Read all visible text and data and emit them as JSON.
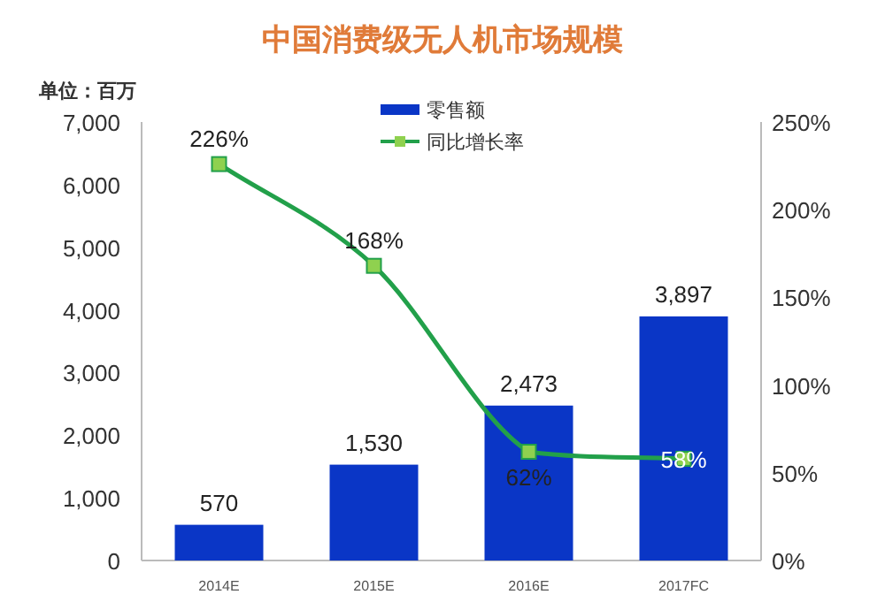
{
  "chart_data": {
    "type": "bar",
    "title": "中国消费级无人机市场规模",
    "ylabel": "单位：百万",
    "categories": [
      "2014E",
      "2015E",
      "2016E",
      "2017FC"
    ],
    "series": [
      {
        "name": "零售额",
        "color": "#0a36c6",
        "values": [
          570,
          1530,
          2473,
          3897
        ],
        "value_labels": [
          "570",
          "1,530",
          "2,473",
          "3,897"
        ]
      },
      {
        "name": "同比增长率",
        "type": "line",
        "axis": "y2",
        "color": "#22a04a",
        "marker": "square",
        "values": [
          226,
          168,
          62,
          58
        ],
        "value_labels": [
          "226%",
          "168%",
          "62%",
          "58%"
        ]
      }
    ],
    "ylim": [
      0,
      7000
    ],
    "yticks": [
      {
        "value": 0,
        "label": "0"
      },
      {
        "value": 1000,
        "label": "1,000"
      },
      {
        "value": 2000,
        "label": "2,000"
      },
      {
        "value": 3000,
        "label": "3,000"
      },
      {
        "value": 4000,
        "label": "4,000"
      },
      {
        "value": 5000,
        "label": "5,000"
      },
      {
        "value": 6000,
        "label": "6,000"
      },
      {
        "value": 7000,
        "label": "7,000"
      }
    ],
    "y2lim": [
      0,
      250
    ],
    "y2ticks": [
      {
        "value": 0,
        "label": "0%"
      },
      {
        "value": 50,
        "label": "50%"
      },
      {
        "value": 100,
        "label": "100%"
      },
      {
        "value": 150,
        "label": "150%"
      },
      {
        "value": 200,
        "label": "200%"
      },
      {
        "value": 250,
        "label": "250%"
      }
    ],
    "legend": "top",
    "grid": false
  }
}
